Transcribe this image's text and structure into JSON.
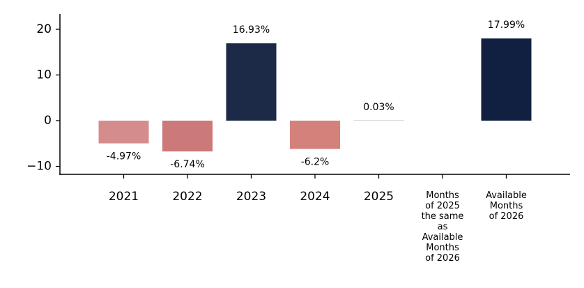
{
  "chart_data": {
    "type": "bar",
    "categories": [
      "2021",
      "2022",
      "2023",
      "2024",
      "2025",
      "Months\nof 2025\nthe same\nas\nAvailable\nMonths\nof 2026",
      "Available\nMonths\nof 2026"
    ],
    "values": [
      -4.97,
      -6.74,
      16.93,
      -6.2,
      0.03,
      null,
      17.99
    ],
    "value_labels": [
      "-4.97%",
      "-6.74%",
      "16.93%",
      "-6.2%",
      "0.03%",
      null,
      "17.99%"
    ],
    "colors": [
      "#d48c8c",
      "#cc7979",
      "#1c2a48",
      "#d4817b",
      "#1a2848",
      null,
      "#112041"
    ],
    "ylim": [
      -11.75,
      23.36
    ],
    "yticks": [
      {
        "value": -10,
        "label": "−10"
      },
      0,
      10,
      20
    ],
    "grid": false
  }
}
